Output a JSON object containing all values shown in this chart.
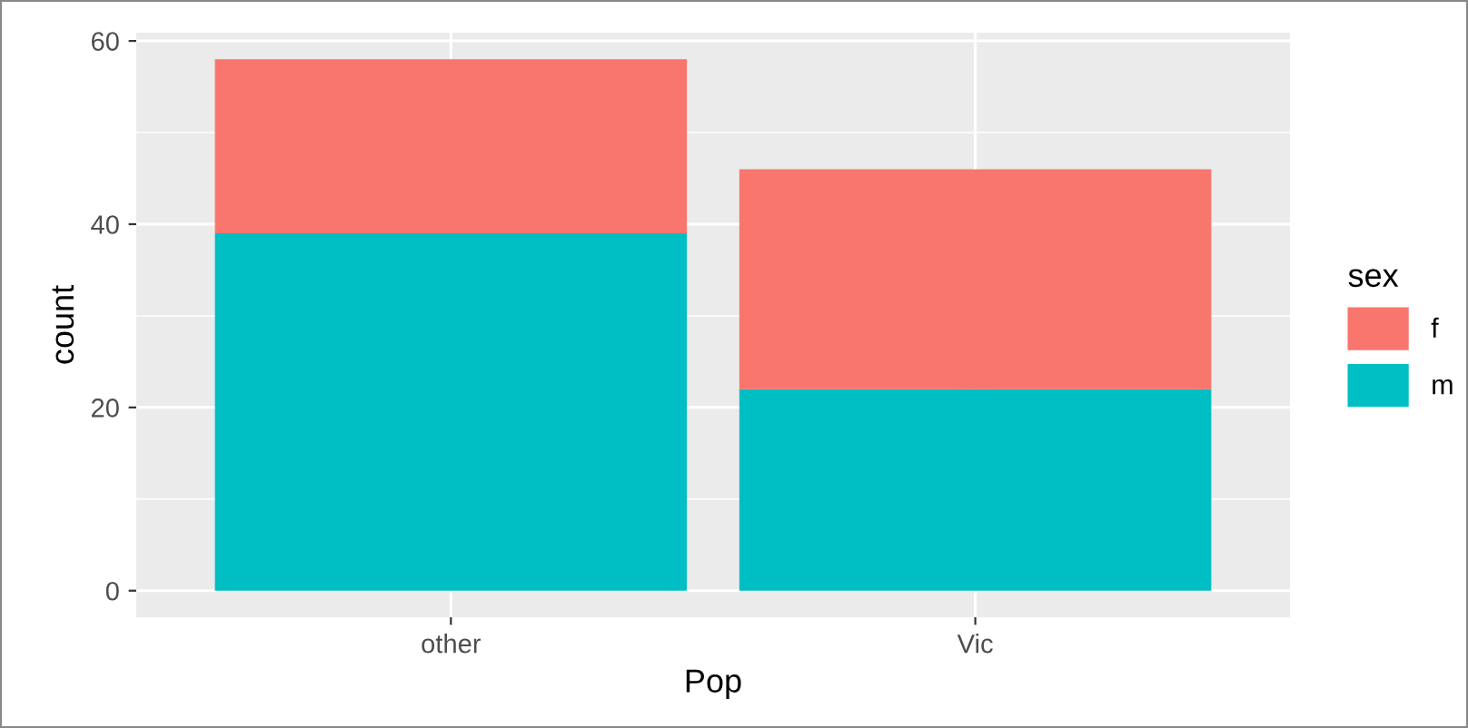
{
  "chart_data": {
    "type": "bar",
    "stacked": true,
    "categories": [
      "other",
      "Vic"
    ],
    "series": [
      {
        "name": "m",
        "color": "#00bfc4",
        "values": [
          39,
          22
        ]
      },
      {
        "name": "f",
        "color": "#f8766d",
        "values": [
          19,
          24
        ]
      }
    ],
    "xlabel": "Pop",
    "ylabel": "count",
    "legend_title": "sex",
    "legend": "right",
    "ylim": [
      -2.9,
      60.9
    ],
    "yticks": [
      0,
      20,
      40,
      60
    ],
    "grid": true
  }
}
